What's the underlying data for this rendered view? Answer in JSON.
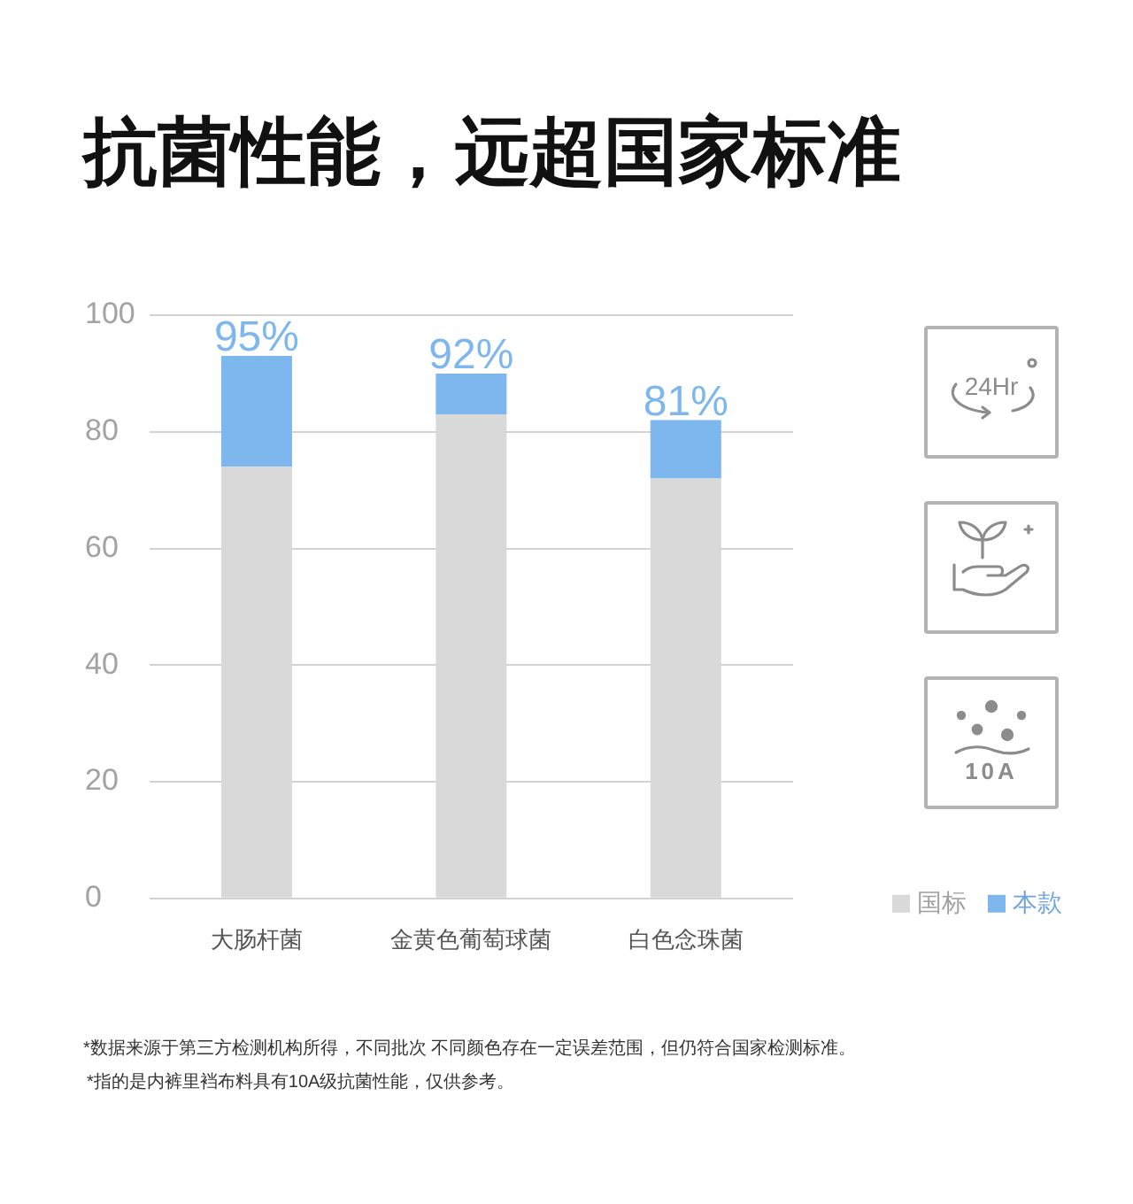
{
  "chart_data": {
    "type": "bar",
    "title": "抗菌性能，远超国家标准",
    "categories": [
      "大肠杆菌",
      "金黄色葡萄球菌",
      "白色念珠菌"
    ],
    "series": [
      {
        "name": "国标",
        "color": "#d9d9d9",
        "values": [
          74,
          83,
          72
        ]
      },
      {
        "name": "本款",
        "color": "#7db7ee",
        "values": [
          19,
          7,
          10
        ]
      }
    ],
    "stacked": true,
    "ylim": [
      0,
      100
    ],
    "yticks": [
      0,
      20,
      40,
      60,
      80,
      100
    ],
    "grid": "y",
    "legend": "bottom right",
    "annotations": [
      "*数据来源于第三方检测机构所得，不同批次 不同颜色存在一定误差范围，但仍符合国家检测标准。",
      "*指的是内裤里裆布料具有10A级抗菌性能，仅供参考。",
      "24Hr",
      "10A",
      {
        "text": "95%",
        "x": "大肠杆菌",
        "y": 93
      },
      {
        "text": "92%",
        "x": "金黄色葡萄球菌",
        "y": 90
      },
      {
        "text": "81%",
        "x": "白色念珠菌",
        "y": 82
      }
    ]
  }
}
